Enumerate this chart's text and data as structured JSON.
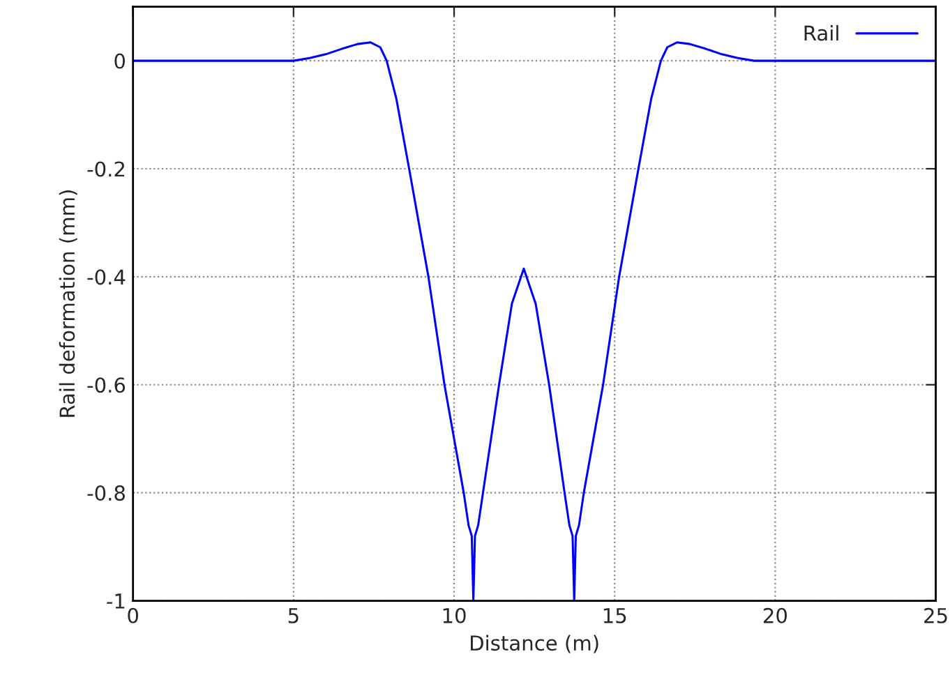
{
  "chart_data": {
    "type": "line",
    "xlabel": "Distance (m)",
    "ylabel": "Rail deformation (mm)",
    "xlim": [
      0,
      25
    ],
    "ylim": [
      -1,
      0.1
    ],
    "xticks": [
      0,
      5,
      10,
      15,
      20,
      25
    ],
    "yticks": [
      -1,
      -0.8,
      -0.6,
      -0.4,
      -0.2,
      0
    ],
    "grid": true,
    "legend": "top right",
    "line_style": "solid",
    "series": [
      {
        "name": "Rail",
        "color": "#0000ff",
        "x": [
          0,
          4,
          5,
          5.5,
          6,
          6.5,
          7,
          7.4,
          7.7,
          7.9,
          8.2,
          8.6,
          9.2,
          9.7,
          10.0,
          10.3,
          10.45,
          10.55,
          10.6,
          10.65,
          10.75,
          10.9,
          11.4,
          11.8,
          12.17,
          12.54,
          12.96,
          13.44,
          13.59,
          13.69,
          13.74,
          13.79,
          13.89,
          14.04,
          14.64,
          15.14,
          15.74,
          16.14,
          16.44,
          16.64,
          16.94,
          17.34,
          17.84,
          18.34,
          18.84,
          19.34,
          25
        ],
        "values": [
          0,
          0,
          0,
          0.005,
          0.012,
          0.022,
          0.031,
          0.034,
          0.025,
          0.0,
          -0.07,
          -0.2,
          -0.4,
          -0.6,
          -0.7,
          -0.8,
          -0.86,
          -0.88,
          -1.0,
          -0.88,
          -0.86,
          -0.8,
          -0.6,
          -0.45,
          -0.385,
          -0.45,
          -0.6,
          -0.8,
          -0.86,
          -0.88,
          -1.0,
          -0.88,
          -0.86,
          -0.8,
          -0.6,
          -0.4,
          -0.2,
          -0.07,
          0.0,
          0.025,
          0.034,
          0.031,
          0.022,
          0.012,
          0.005,
          0,
          0
        ]
      }
    ]
  }
}
